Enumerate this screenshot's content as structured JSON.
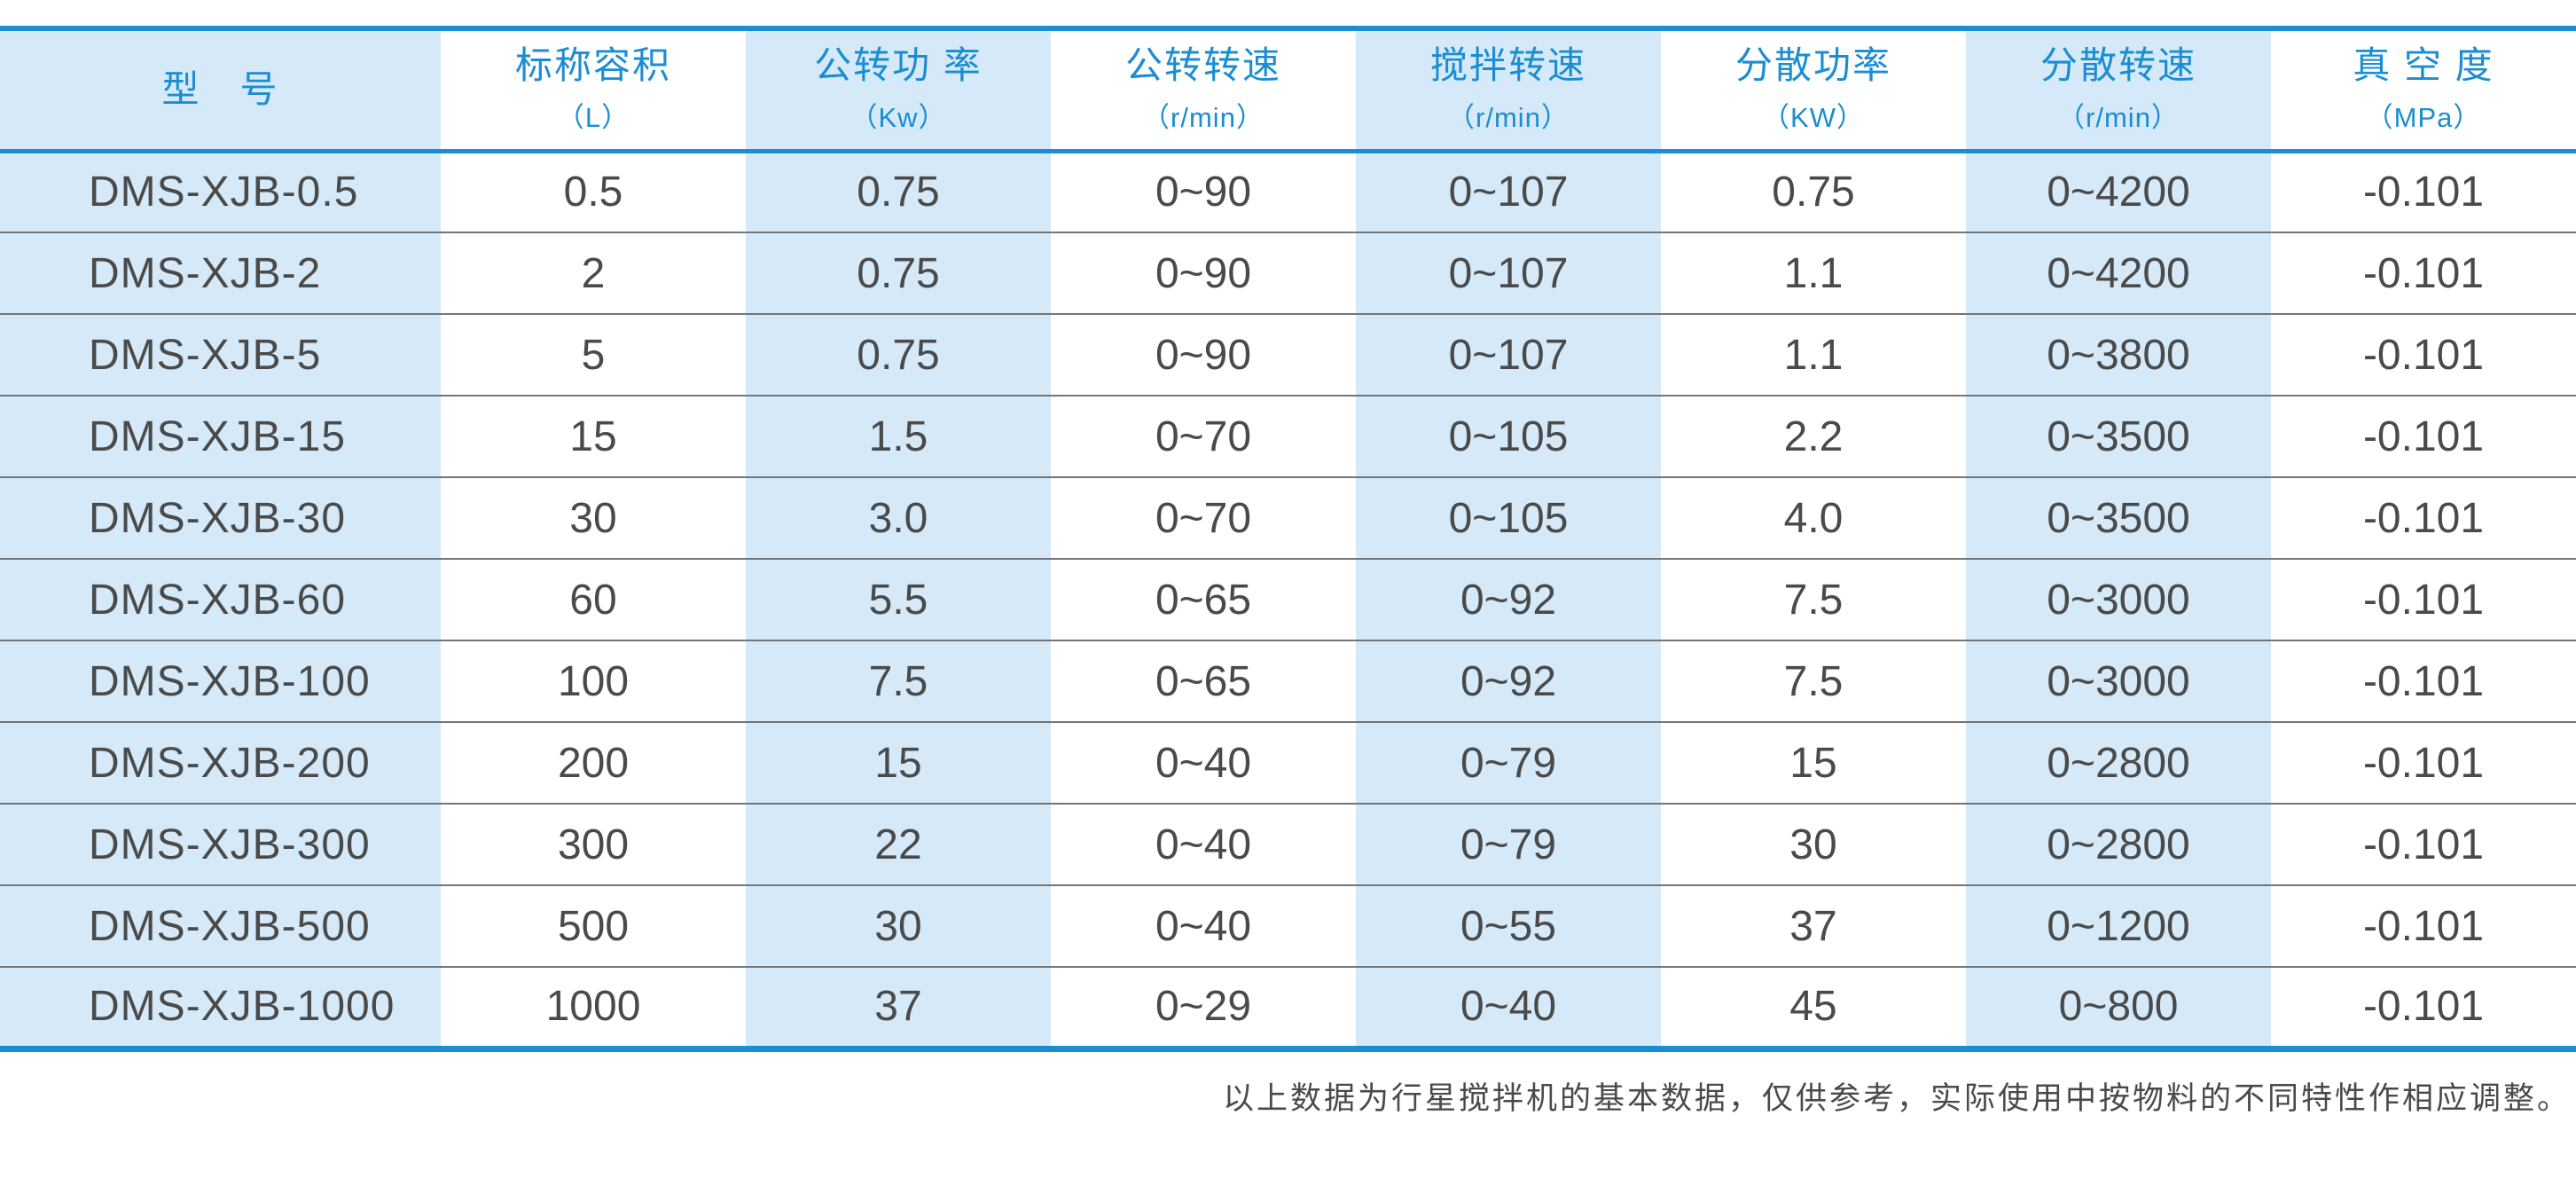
{
  "colors": {
    "accent": "#1b8dd2",
    "stripe": "#d5e9f8",
    "body_text": "#4a4a4a",
    "row_line": "#757575"
  },
  "table": {
    "columns": [
      {
        "title": "型　号",
        "unit": ""
      },
      {
        "title": "标称容积",
        "unit": "（L）"
      },
      {
        "title": "公转功 率",
        "unit": "（Kw）"
      },
      {
        "title": "公转转速",
        "unit": "（r/min）"
      },
      {
        "title": "搅拌转速",
        "unit": "（r/min）"
      },
      {
        "title": "分散功率",
        "unit": "（KW）"
      },
      {
        "title": "分散转速",
        "unit": "（r/min）"
      },
      {
        "title": "真 空 度",
        "unit": "（MPa）"
      }
    ],
    "rows": [
      [
        "DMS-XJB-0.5",
        "0.5",
        "0.75",
        "0~90",
        "0~107",
        "0.75",
        "0~4200",
        "-0.101"
      ],
      [
        "DMS-XJB-2",
        "2",
        "0.75",
        "0~90",
        "0~107",
        "1.1",
        "0~4200",
        "-0.101"
      ],
      [
        "DMS-XJB-5",
        "5",
        "0.75",
        "0~90",
        "0~107",
        "1.1",
        "0~3800",
        "-0.101"
      ],
      [
        "DMS-XJB-15",
        "15",
        "1.5",
        "0~70",
        "0~105",
        "2.2",
        "0~3500",
        "-0.101"
      ],
      [
        "DMS-XJB-30",
        "30",
        "3.0",
        "0~70",
        "0~105",
        "4.0",
        "0~3500",
        "-0.101"
      ],
      [
        "DMS-XJB-60",
        "60",
        "5.5",
        "0~65",
        "0~92",
        "7.5",
        "0~3000",
        "-0.101"
      ],
      [
        "DMS-XJB-100",
        "100",
        "7.5",
        "0~65",
        "0~92",
        "7.5",
        "0~3000",
        "-0.101"
      ],
      [
        "DMS-XJB-200",
        "200",
        "15",
        "0~40",
        "0~79",
        "15",
        "0~2800",
        "-0.101"
      ],
      [
        "DMS-XJB-300",
        "300",
        "22",
        "0~40",
        "0~79",
        "30",
        "0~2800",
        "-0.101"
      ],
      [
        "DMS-XJB-500",
        "500",
        "30",
        "0~40",
        "0~55",
        "37",
        "0~1200",
        "-0.101"
      ],
      [
        "DMS-XJB-1000",
        "1000",
        "37",
        "0~29",
        "0~40",
        "45",
        "0~800",
        "-0.101"
      ]
    ]
  },
  "footnote": "以上数据为行星搅拌机的基本数据，仅供参考，实际使用中按物料的不同特性作相应调整。"
}
